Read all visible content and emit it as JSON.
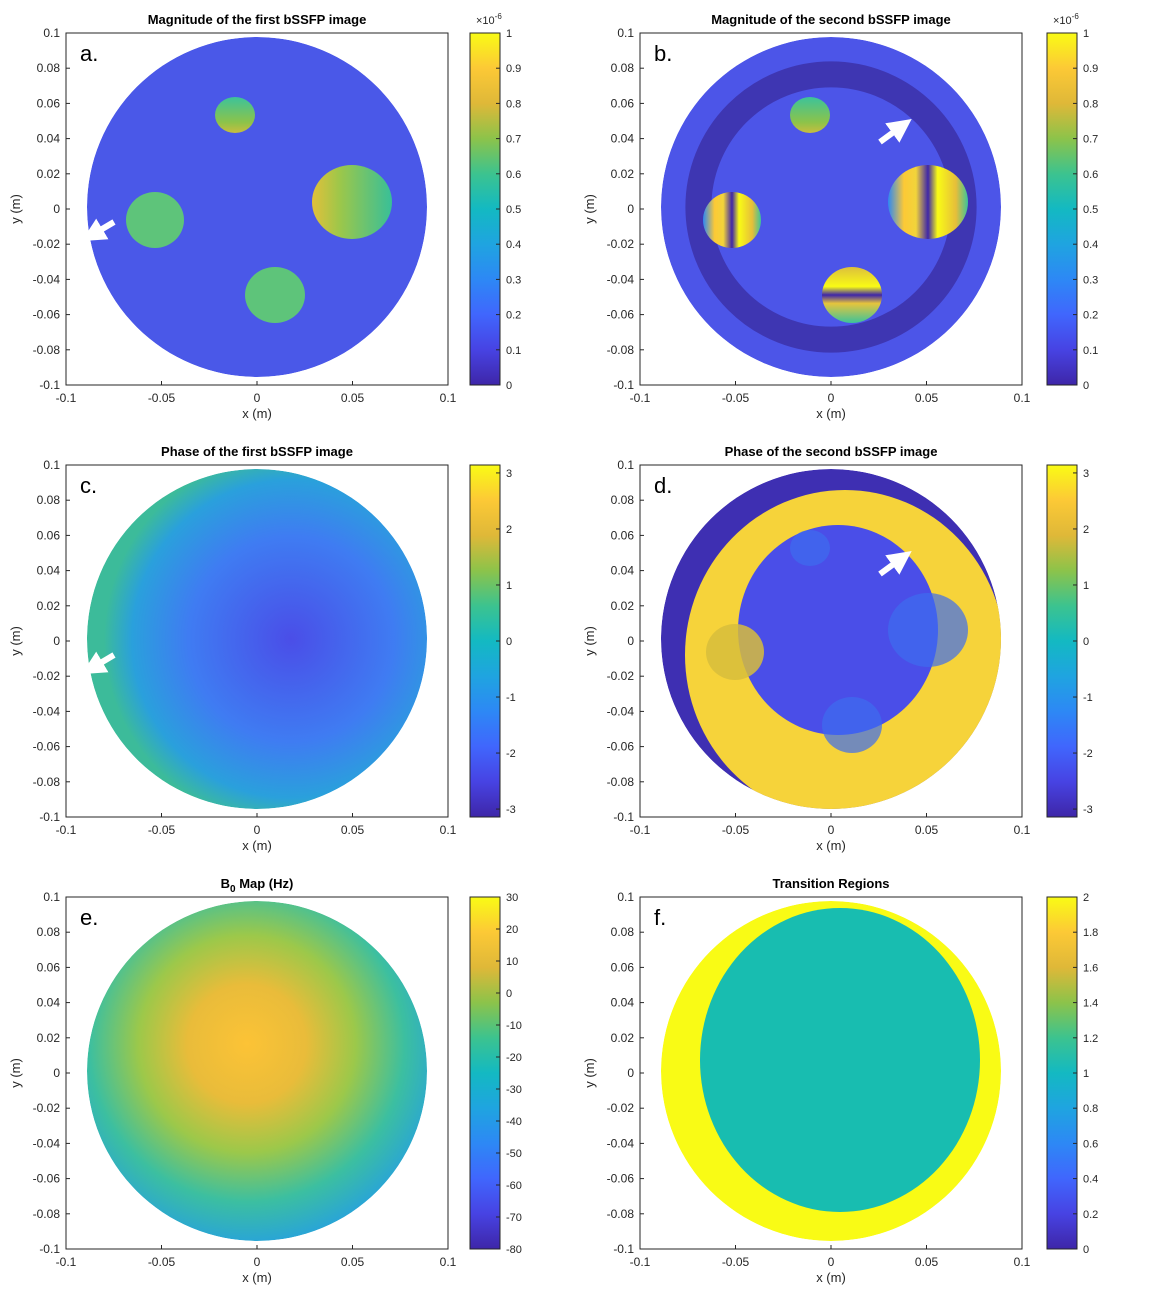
{
  "figure": {
    "xlabel": "x (m)",
    "ylabel": "y (m)",
    "axis_ticks": [
      "-0.1",
      "-0.05",
      "0",
      "0.05",
      "0.1"
    ],
    "y_axis_ticks": [
      "0.1",
      "0.08",
      "0.06",
      "0.04",
      "0.02",
      "0",
      "-0.02",
      "-0.04",
      "-0.06",
      "-0.08",
      "-0.1"
    ],
    "arrow_color": "#ffffff"
  },
  "panels": [
    {
      "id": "a",
      "label": "a.",
      "title": "Magnitude of the first bSSFP image",
      "colorbar": {
        "exponent_base": "×10",
        "exponent_power": "-6",
        "ticks": [
          "1",
          "0.9",
          "0.8",
          "0.7",
          "0.6",
          "0.5",
          "0.4",
          "0.3",
          "0.2",
          "0.1",
          "0"
        ]
      }
    },
    {
      "id": "b",
      "label": "b.",
      "title": "Magnitude of the second bSSFP image",
      "colorbar": {
        "exponent_base": "×10",
        "exponent_power": "-6",
        "ticks": [
          "1",
          "0.9",
          "0.8",
          "0.7",
          "0.6",
          "0.5",
          "0.4",
          "0.3",
          "0.2",
          "0.1",
          "0"
        ]
      }
    },
    {
      "id": "c",
      "label": "c.",
      "title": "Phase of the first bSSFP image",
      "colorbar": {
        "ticks": [
          "3",
          "2",
          "1",
          "0",
          "-1",
          "-2",
          "-3"
        ]
      }
    },
    {
      "id": "d",
      "label": "d.",
      "title": "Phase of the second bSSFP image",
      "colorbar": {
        "ticks": [
          "3",
          "2",
          "1",
          "0",
          "-1",
          "-2",
          "-3"
        ]
      }
    },
    {
      "id": "e",
      "label": "e.",
      "title_main": "B",
      "title_sub": "0",
      "title_rest": " Map (Hz)",
      "colorbar": {
        "ticks": [
          "30",
          "20",
          "10",
          "0",
          "-10",
          "-20",
          "-30",
          "-40",
          "-50",
          "-60",
          "-70",
          "-80"
        ]
      }
    },
    {
      "id": "f",
      "label": "f.",
      "title": "Transition Regions",
      "colorbar": {
        "ticks": [
          "2",
          "1.8",
          "1.6",
          "1.4",
          "1.2",
          "1",
          "0.8",
          "0.6",
          "0.4",
          "0.2",
          "0"
        ]
      }
    }
  ]
}
